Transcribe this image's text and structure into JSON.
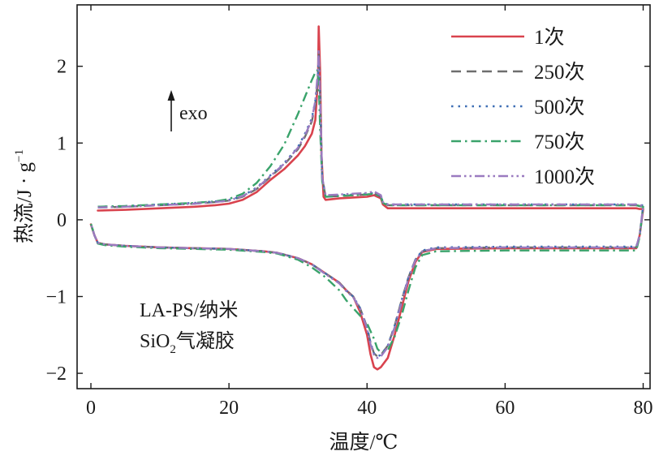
{
  "chart_data": {
    "type": "line",
    "xlabel": "温度/℃",
    "ylabel": "热流/J · g",
    "ylabel_superscript": "−1",
    "xlim": [
      -2,
      81
    ],
    "ylim": [
      -2.2,
      2.8
    ],
    "xticks": [
      0,
      20,
      40,
      60,
      80
    ],
    "xtick_labels": [
      "0",
      "20",
      "40",
      "60",
      "80"
    ],
    "yticks": [
      -2,
      -1,
      0,
      1,
      2
    ],
    "ytick_labels": [
      "−2",
      "−1",
      "0",
      "1",
      "2"
    ],
    "grid": false,
    "legend_position": "top-right",
    "annotations": {
      "exo_label": "exo",
      "sample_line1": "LA-PS/纳米",
      "sample_line2_prefix": "SiO",
      "sample_line2_subscript": "2",
      "sample_line2_suffix": "气凝胶"
    },
    "series": [
      {
        "name": "1次",
        "color": "#d9434e",
        "dash": "solid",
        "heating": {
          "x": [
            1,
            5,
            10,
            15,
            18,
            20,
            22,
            24,
            26,
            28,
            30,
            31,
            32,
            32.5,
            32.9,
            33.0,
            33.2,
            33.4,
            33.7,
            34,
            36,
            38,
            40,
            41,
            42,
            42.3,
            43,
            50,
            60,
            70,
            75,
            78,
            79,
            79.5
          ],
          "y": [
            0.12,
            0.13,
            0.15,
            0.17,
            0.19,
            0.21,
            0.26,
            0.36,
            0.52,
            0.66,
            0.84,
            0.96,
            1.12,
            1.3,
            1.85,
            2.52,
            1.95,
            0.85,
            0.3,
            0.26,
            0.28,
            0.29,
            0.3,
            0.32,
            0.28,
            0.2,
            0.15,
            0.15,
            0.15,
            0.15,
            0.15,
            0.15,
            0.15,
            0.14
          ]
        },
        "cooling": {
          "x": [
            80,
            79.5,
            79,
            75,
            70,
            60,
            50,
            48,
            47,
            46,
            45,
            44,
            43,
            42,
            41.5,
            41,
            40.5,
            40,
            39,
            38,
            37,
            36,
            34,
            32,
            30,
            27,
            25,
            20,
            15,
            10,
            5,
            2,
            1,
            0.5,
            0
          ],
          "y": [
            0.14,
            -0.2,
            -0.37,
            -0.37,
            -0.37,
            -0.37,
            -0.38,
            -0.42,
            -0.55,
            -0.8,
            -1.15,
            -1.5,
            -1.8,
            -1.92,
            -1.95,
            -1.92,
            -1.75,
            -1.5,
            -1.2,
            -1.0,
            -0.92,
            -0.82,
            -0.7,
            -0.58,
            -0.5,
            -0.43,
            -0.41,
            -0.38,
            -0.37,
            -0.36,
            -0.34,
            -0.32,
            -0.3,
            -0.2,
            -0.06
          ]
        }
      },
      {
        "name": "250次",
        "color": "#6e6e6e",
        "dash": "dashed",
        "heating": {
          "x": [
            1,
            5,
            10,
            15,
            18,
            20,
            22,
            24,
            26,
            28,
            30,
            31,
            32,
            32.5,
            32.9,
            33.0,
            33.2,
            33.5,
            34,
            36,
            38,
            40,
            41,
            42,
            42.3,
            43,
            50,
            60,
            70,
            75,
            78,
            79,
            79.5
          ],
          "y": [
            0.16,
            0.17,
            0.19,
            0.21,
            0.23,
            0.25,
            0.3,
            0.4,
            0.56,
            0.72,
            0.92,
            1.08,
            1.28,
            1.5,
            1.85,
            2.15,
            1.6,
            0.55,
            0.3,
            0.31,
            0.32,
            0.33,
            0.34,
            0.3,
            0.22,
            0.19,
            0.19,
            0.19,
            0.19,
            0.19,
            0.19,
            0.19,
            0.18
          ]
        },
        "cooling": {
          "x": [
            80,
            79.5,
            79,
            75,
            70,
            60,
            50,
            48,
            47,
            46,
            45,
            44,
            43,
            42,
            41.5,
            41,
            40.5,
            40,
            39,
            38,
            37,
            36,
            34,
            32,
            30,
            27,
            25,
            20,
            15,
            10,
            5,
            2,
            1,
            0.5,
            0
          ],
          "y": [
            0.18,
            -0.2,
            -0.36,
            -0.36,
            -0.36,
            -0.36,
            -0.37,
            -0.41,
            -0.52,
            -0.75,
            -1.05,
            -1.38,
            -1.64,
            -1.76,
            -1.78,
            -1.74,
            -1.6,
            -1.4,
            -1.15,
            -1.0,
            -0.92,
            -0.82,
            -0.7,
            -0.58,
            -0.5,
            -0.43,
            -0.41,
            -0.38,
            -0.37,
            -0.36,
            -0.34,
            -0.32,
            -0.3,
            -0.2,
            -0.05
          ]
        }
      },
      {
        "name": "500次",
        "color": "#3f6fb5",
        "dash": "dotted",
        "heating": {
          "x": [
            1,
            5,
            10,
            15,
            18,
            20,
            22,
            24,
            26,
            28,
            30,
            31,
            32,
            32.5,
            32.9,
            33.0,
            33.2,
            33.5,
            34,
            36,
            38,
            40,
            41,
            42,
            42.3,
            43,
            50,
            60,
            70,
            75,
            78,
            79,
            79.5
          ],
          "y": [
            0.17,
            0.18,
            0.2,
            0.22,
            0.24,
            0.26,
            0.31,
            0.42,
            0.58,
            0.74,
            0.95,
            1.12,
            1.32,
            1.55,
            1.9,
            2.2,
            1.62,
            0.55,
            0.31,
            0.32,
            0.33,
            0.34,
            0.35,
            0.31,
            0.23,
            0.2,
            0.2,
            0.2,
            0.2,
            0.2,
            0.2,
            0.2,
            0.19
          ]
        },
        "cooling": {
          "x": [
            80,
            79.5,
            79,
            75,
            70,
            60,
            50,
            48,
            47,
            46,
            45,
            44,
            43,
            42,
            41.5,
            41,
            40.5,
            40,
            39,
            38,
            37,
            36,
            34,
            32,
            30,
            27,
            25,
            20,
            15,
            10,
            5,
            2,
            1,
            0.5,
            0
          ],
          "y": [
            0.19,
            -0.2,
            -0.35,
            -0.35,
            -0.35,
            -0.35,
            -0.36,
            -0.4,
            -0.52,
            -0.75,
            -1.05,
            -1.38,
            -1.64,
            -1.76,
            -1.78,
            -1.74,
            -1.6,
            -1.4,
            -1.15,
            -1.0,
            -0.92,
            -0.82,
            -0.7,
            -0.58,
            -0.5,
            -0.43,
            -0.41,
            -0.38,
            -0.37,
            -0.36,
            -0.34,
            -0.32,
            -0.3,
            -0.2,
            -0.05
          ]
        }
      },
      {
        "name": "750次",
        "color": "#3aa36b",
        "dash": "dashdot",
        "heating": {
          "x": [
            1,
            5,
            10,
            15,
            18,
            20,
            22,
            24,
            26,
            28,
            30,
            31,
            32,
            32.5,
            32.8,
            33.0,
            33.2,
            33.5,
            34,
            36,
            38,
            40,
            41,
            42,
            42.3,
            43,
            50,
            60,
            70,
            75,
            78,
            79,
            79.5
          ],
          "y": [
            0.17,
            0.18,
            0.2,
            0.22,
            0.24,
            0.27,
            0.34,
            0.48,
            0.7,
            0.98,
            1.38,
            1.6,
            1.82,
            1.92,
            1.95,
            1.8,
            1.2,
            0.5,
            0.3,
            0.31,
            0.32,
            0.33,
            0.34,
            0.3,
            0.22,
            0.19,
            0.19,
            0.19,
            0.19,
            0.19,
            0.19,
            0.19,
            0.18
          ]
        },
        "cooling": {
          "x": [
            80,
            79.5,
            79,
            75,
            70,
            60,
            50,
            48,
            47,
            46,
            45,
            44,
            43,
            42,
            41.5,
            41,
            40.5,
            40,
            39,
            38,
            37,
            36,
            34,
            32,
            30,
            27,
            25,
            20,
            15,
            10,
            5,
            2,
            1,
            0.5,
            0
          ],
          "y": [
            0.17,
            -0.22,
            -0.4,
            -0.4,
            -0.4,
            -0.4,
            -0.41,
            -0.46,
            -0.62,
            -0.92,
            -1.25,
            -1.52,
            -1.7,
            -1.73,
            -1.68,
            -1.55,
            -1.45,
            -1.35,
            -1.25,
            -1.15,
            -1.05,
            -0.92,
            -0.75,
            -0.62,
            -0.52,
            -0.44,
            -0.42,
            -0.39,
            -0.38,
            -0.37,
            -0.35,
            -0.33,
            -0.31,
            -0.2,
            -0.05
          ]
        }
      },
      {
        "name": "1000次",
        "color": "#9a7bc0",
        "dash": "dashdotdot",
        "heating": {
          "x": [
            1,
            5,
            10,
            15,
            18,
            20,
            22,
            24,
            26,
            28,
            30,
            31,
            32,
            32.5,
            32.9,
            33.0,
            33.2,
            33.5,
            34,
            36,
            38,
            40,
            41,
            42,
            42.3,
            43,
            50,
            60,
            70,
            75,
            78,
            79,
            79.5
          ],
          "y": [
            0.16,
            0.17,
            0.19,
            0.21,
            0.23,
            0.25,
            0.31,
            0.41,
            0.57,
            0.73,
            0.94,
            1.1,
            1.3,
            1.55,
            1.95,
            2.22,
            1.62,
            0.55,
            0.32,
            0.33,
            0.34,
            0.35,
            0.37,
            0.32,
            0.23,
            0.2,
            0.2,
            0.2,
            0.2,
            0.2,
            0.2,
            0.2,
            0.19
          ]
        },
        "cooling": {
          "x": [
            80,
            79.5,
            79,
            75,
            70,
            60,
            50,
            48,
            47,
            46,
            45,
            44,
            43,
            42,
            41.5,
            41,
            40.5,
            40,
            39,
            38,
            37,
            36,
            34,
            32,
            30,
            27,
            25,
            20,
            15,
            10,
            5,
            2,
            1,
            0.5,
            0
          ],
          "y": [
            0.18,
            -0.2,
            -0.36,
            -0.36,
            -0.36,
            -0.36,
            -0.37,
            -0.41,
            -0.53,
            -0.76,
            -1.08,
            -1.4,
            -1.66,
            -1.78,
            -1.8,
            -1.76,
            -1.62,
            -1.42,
            -1.16,
            -1.01,
            -0.93,
            -0.83,
            -0.71,
            -0.58,
            -0.5,
            -0.43,
            -0.41,
            -0.38,
            -0.37,
            -0.36,
            -0.34,
            -0.32,
            -0.3,
            -0.2,
            -0.05
          ]
        }
      }
    ]
  }
}
